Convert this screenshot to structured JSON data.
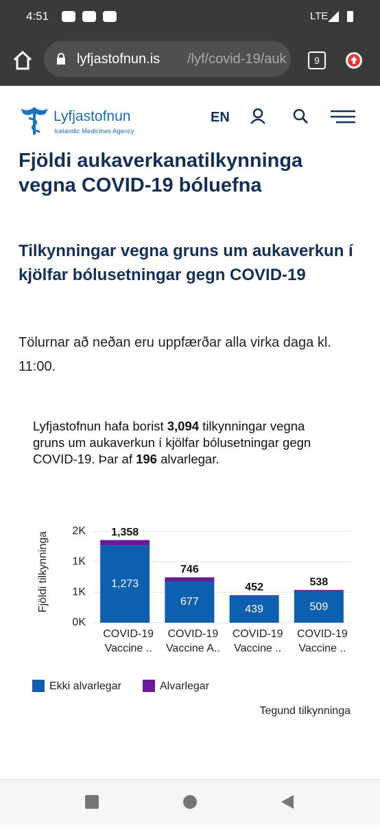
{
  "status_bar": {
    "time": "4:51",
    "network": "LTE"
  },
  "browser": {
    "url_host": "lyfjastofnun.is",
    "url_path": "/lyf/covid-19/auk",
    "tab_count": 9
  },
  "header": {
    "logo_name": "Lyfjastofnun",
    "logo_subtitle": "Icelandic Medicines Agency",
    "language": "EN"
  },
  "page": {
    "title": "Fjöldi aukaverkanatilkynninga vegna COVID-19 bóluefna",
    "subtitle": "Tilkynningar vegna gruns um aukaverkun í kjölfar bólusetningar gegn COVID-19",
    "update_note": "Tölurnar að neðan eru uppfærðar alla virka daga kl. 11:00.",
    "summary": [
      "Lyfjastofnun hafa borist ",
      "3,094",
      " tilkynningar vegna gruns um aukaverkun í kjölfar bólusetningar gegn COVID-19. Þar af ",
      "196",
      " alvarlegar."
    ]
  },
  "chart_data": {
    "type": "bar",
    "stacked": true,
    "y_label": "Fjöldi tilkynninga",
    "x_label": "Tegund tilkynninga",
    "categories": [
      [
        "COVID-19",
        "Vaccine .."
      ],
      [
        "COVID-19",
        "Vaccine A.."
      ],
      [
        "COVID-19",
        "Vaccine .."
      ],
      [
        "COVID-19",
        "Vaccine .."
      ]
    ],
    "series": [
      {
        "name": "Ekki alvarlegar",
        "color": "#0d5fb0",
        "values": [
          1273,
          677,
          439,
          509
        ],
        "value_labels": [
          "1,273",
          "677",
          "439",
          "509"
        ]
      },
      {
        "name": "Alvarlegar",
        "color": "#6a1b9a",
        "values": [
          85,
          69,
          13,
          29
        ]
      }
    ],
    "totals": {
      "values": [
        1358,
        746,
        452,
        538
      ],
      "value_labels": [
        "1,358",
        "746",
        "452",
        "538"
      ]
    },
    "ylim": [
      0,
      1500
    ],
    "yticks": [
      {
        "value": 0,
        "label": "0K"
      },
      {
        "value": 500,
        "label": "1K"
      },
      {
        "value": 1000,
        "label": "1K"
      },
      {
        "value": 1500,
        "label": "2K"
      }
    ],
    "grid": true
  }
}
